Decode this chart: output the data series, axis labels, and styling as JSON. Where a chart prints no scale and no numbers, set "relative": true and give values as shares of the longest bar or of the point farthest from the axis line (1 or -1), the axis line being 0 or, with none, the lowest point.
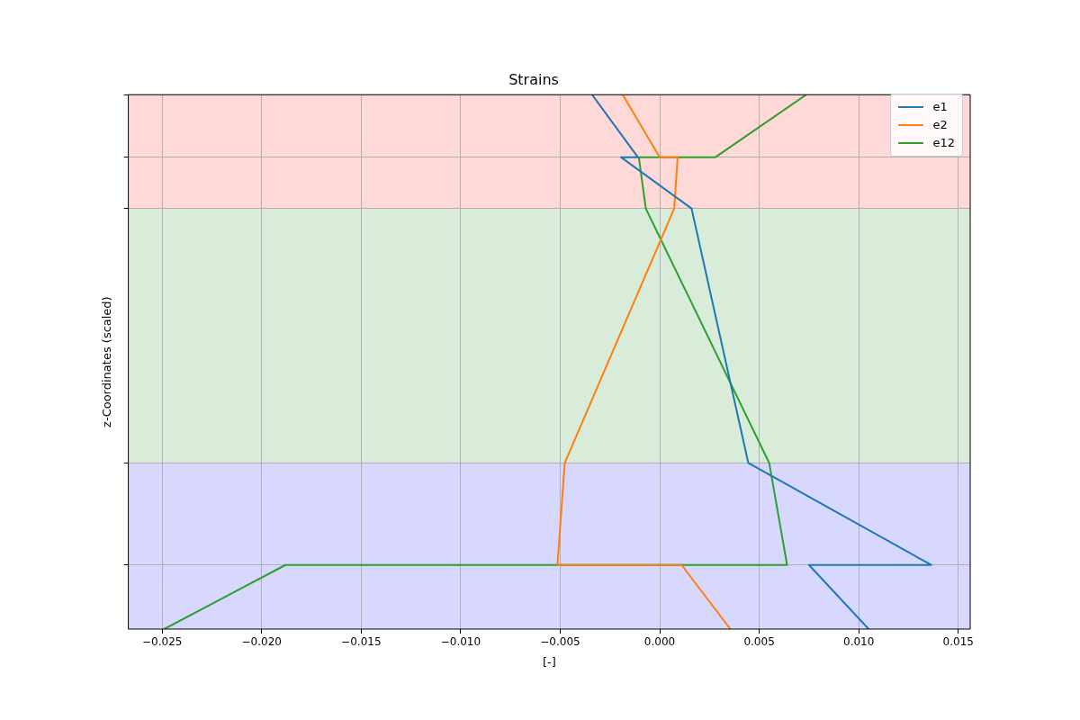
{
  "chart_data": {
    "type": "line",
    "title": "Strains",
    "xlabel": "[-]",
    "ylabel": "z-Coordinates (scaled)",
    "xlim": [
      -0.0267,
      0.0156
    ],
    "xticks": [
      {
        "value": -0.025,
        "label": "−0.025"
      },
      {
        "value": -0.02,
        "label": "−0.020"
      },
      {
        "value": -0.015,
        "label": "−0.015"
      },
      {
        "value": -0.01,
        "label": "−0.010"
      },
      {
        "value": -0.005,
        "label": "−0.005"
      },
      {
        "value": 0,
        "label": "0.000"
      },
      {
        "value": 0.005,
        "label": "0.005"
      },
      {
        "value": 0.01,
        "label": "0.010"
      },
      {
        "value": 0.015,
        "label": "0.015"
      }
    ],
    "relative": true,
    "tick_labels": "x",
    "series": [
      {
        "name": "e1",
        "color": "#1f77b4",
        "x": [
          -0.0034,
          -0.0011,
          -0.00195,
          0.0016,
          0.00445,
          0.01364,
          0.0075,
          0.0105
        ],
        "values": [
          1,
          0.883,
          0.883,
          0.787,
          0.311,
          0.12,
          0.12,
          0
        ]
      },
      {
        "name": "e2",
        "color": "#ff7f0e",
        "x": [
          -0.00186,
          0.0,
          0.0009,
          0.00073,
          -0.00477,
          -0.00514,
          0.0011,
          0.00355
        ],
        "values": [
          1,
          0.883,
          0.883,
          0.787,
          0.311,
          0.12,
          0.12,
          0
        ]
      },
      {
        "name": "e12",
        "color": "#2ca02c",
        "x": [
          0.00736,
          0.0028,
          -0.00105,
          -0.0007,
          0.0055,
          0.0064,
          -0.0188,
          -0.0249
        ],
        "values": [
          1,
          0.883,
          0.883,
          0.787,
          0.311,
          0.12,
          0.12,
          0
        ]
      }
    ],
    "bands": [
      {
        "axis": "y",
        "from": 0.787,
        "to": 1,
        "color": "#ffd8d8"
      },
      {
        "axis": "y",
        "from": 0.311,
        "to": 0.787,
        "color": "#d9ebd9"
      },
      {
        "axis": "y",
        "from": 0,
        "to": 0.311,
        "color": "#d8d8ff"
      }
    ],
    "grid": true,
    "legend": "top right",
    "marker": "none",
    "line_style": "solid"
  }
}
